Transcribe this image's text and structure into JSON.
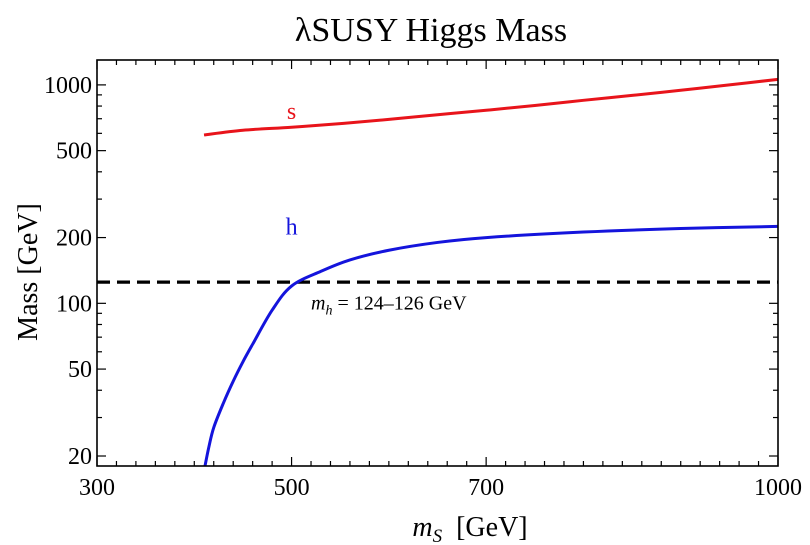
{
  "chart_data": {
    "type": "line",
    "title": "λSUSY Higgs Mass",
    "xlabel": {
      "var": "m",
      "sub": "S",
      "unit": "  [GeV]"
    },
    "ylabel": "Mass  [GeV]",
    "x_scale": "linear",
    "y_scale": "log",
    "xlim": [
      300,
      1000
    ],
    "ylim": [
      18,
      1300
    ],
    "x_ticks": [
      300,
      500,
      700,
      1000
    ],
    "x_tick_labels": [
      "300",
      "500",
      "700",
      "1000"
    ],
    "y_ticks": [
      20,
      50,
      100,
      200,
      500,
      1000
    ],
    "y_tick_labels": [
      "20",
      "50",
      "100",
      "200",
      "500",
      "1000"
    ],
    "grid": false,
    "series": [
      {
        "name": "s",
        "color": "#e8141b",
        "x": [
          410,
          450,
          500,
          550,
          600,
          650,
          700,
          750,
          800,
          850,
          900,
          950,
          1000
        ],
        "y": [
          590,
          620,
          640,
          665,
          695,
          730,
          765,
          805,
          850,
          895,
          945,
          1000,
          1060
        ]
      },
      {
        "name": "h",
        "color": "#1414dc",
        "x": [
          411,
          415,
          420,
          430,
          440,
          450,
          460,
          480,
          500,
          530,
          560,
          600,
          650,
          700,
          800,
          900,
          1000
        ],
        "y": [
          18,
          22,
          27,
          35,
          44,
          54,
          65,
          93,
          120,
          140,
          158,
          175,
          190,
          200,
          212,
          220,
          225
        ]
      }
    ],
    "reference_lines": [
      {
        "orientation": "horizontal",
        "y": 125,
        "style": "dashed",
        "color": "#000000"
      }
    ],
    "annotations": {
      "s_label": {
        "text": "s",
        "color": "#e8141b",
        "x": 500,
        "y": 760
      },
      "h_label": {
        "text": "h",
        "color": "#1414dc",
        "x": 500,
        "y": 225
      },
      "band": {
        "var": "m",
        "sub": "h",
        "text": " = 124–126 GeV",
        "x": 520,
        "y": 100
      }
    }
  }
}
